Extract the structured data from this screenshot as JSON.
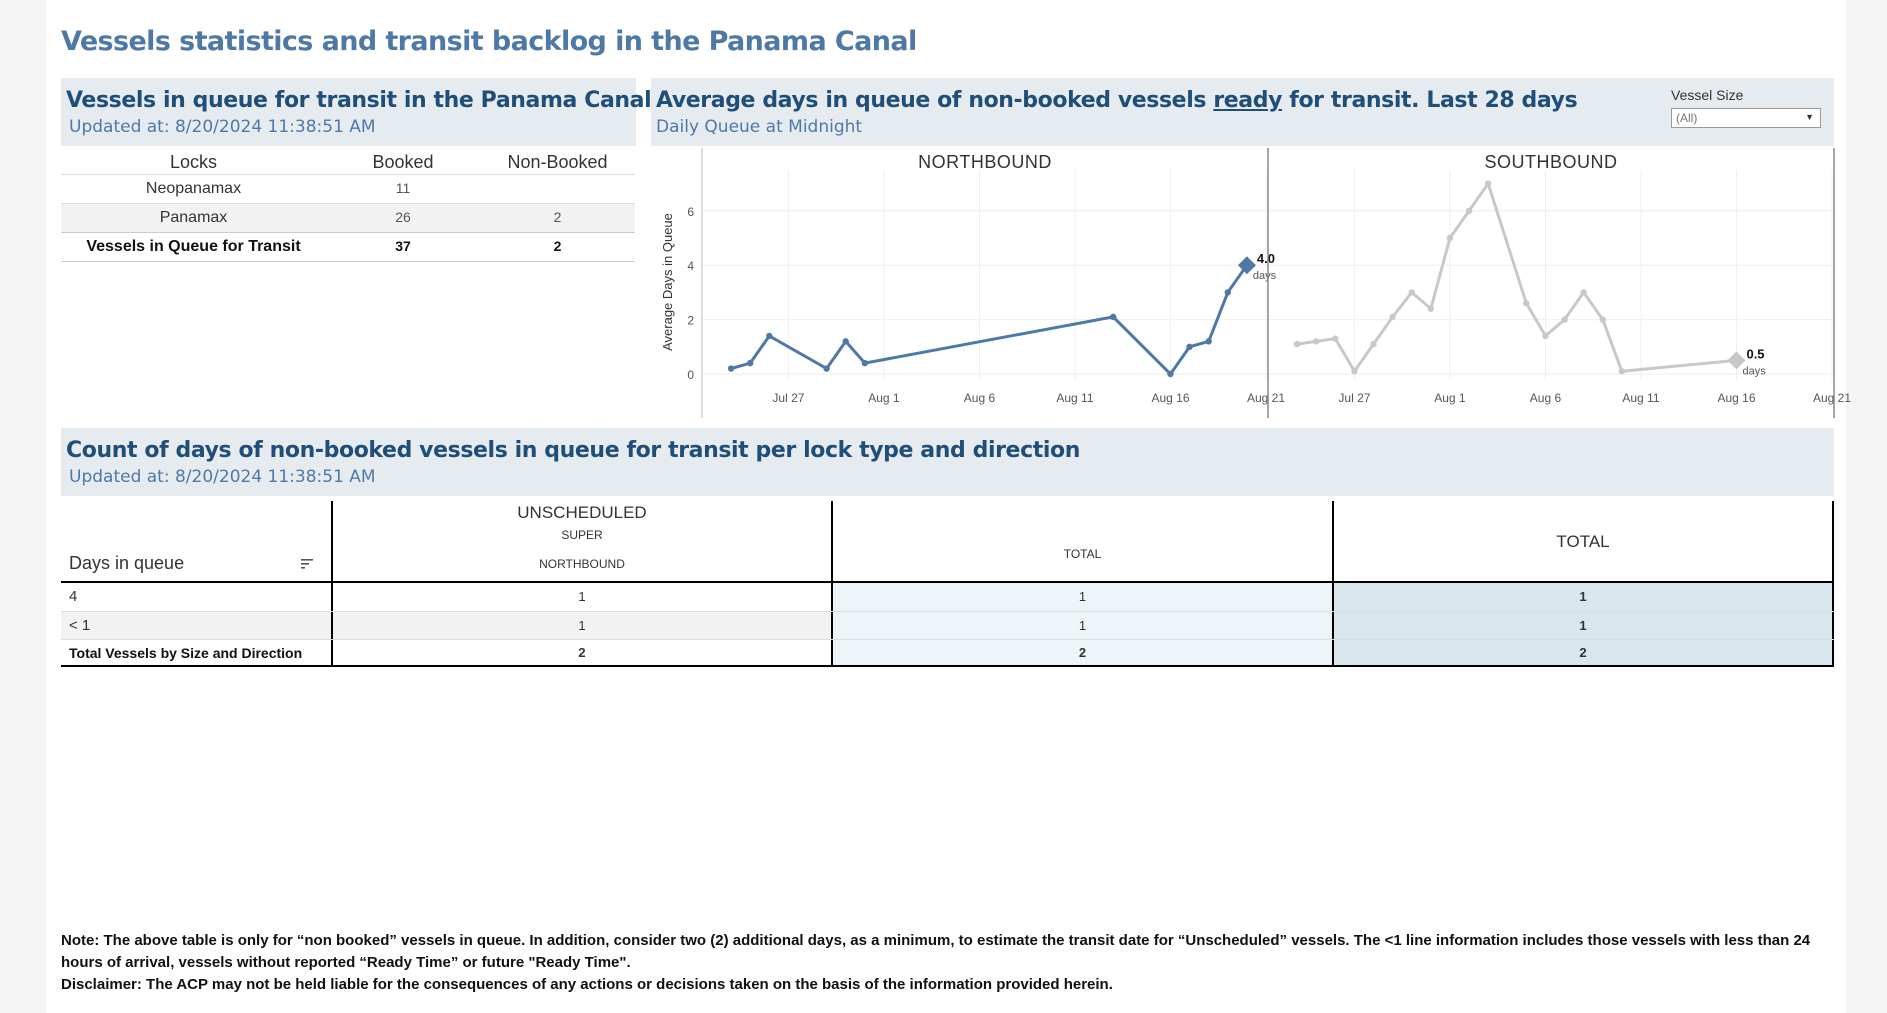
{
  "page": {
    "title": "Vessels statistics and transit backlog in the Panama Canal"
  },
  "queue_panel": {
    "title": "Vessels in queue for transit in the Panama Canal",
    "updated": "Updated at:  8/20/2024 11:38:51 AM",
    "columns": [
      "Locks",
      "Booked",
      "Non-Booked"
    ],
    "rows": [
      {
        "lock": "Neopanamax",
        "booked": "11",
        "non_booked": ""
      },
      {
        "lock": "Panamax",
        "booked": "26",
        "non_booked": "2"
      },
      {
        "lock": "Vessels in Queue for Transit",
        "booked": "37",
        "non_booked": "2"
      }
    ]
  },
  "avg_panel": {
    "title_pre": "Average days in queue of non-booked vessels ",
    "title_ready": "ready",
    "title_post": " for transit. Last 28 days",
    "subtitle": "Daily Queue at Midnight",
    "filter_label": "Vessel Size",
    "filter_value": "(All)"
  },
  "count_panel": {
    "title": "Count of days of non-booked vessels in queue for transit per lock type and direction",
    "updated": "Updated at:  8/20/2024 11:38:51 AM",
    "group_header": "UNSCHEDULED",
    "super_label": "SUPER",
    "northbound_label": "NORTHBOUND",
    "total_sub_label": "TOTAL",
    "total_label": "TOTAL",
    "row_header": "Days in queue",
    "rows": [
      {
        "label": "4",
        "super_nb": "1",
        "unsch_total": "1",
        "total": "1"
      },
      {
        "label": "< 1",
        "super_nb": "1",
        "unsch_total": "1",
        "total": "1"
      },
      {
        "label": "Total Vessels by Size and Direction",
        "super_nb": "2",
        "unsch_total": "2",
        "total": "2"
      }
    ]
  },
  "note": {
    "line1": "Note:  The above table is only for “non booked” vessels in queue. In addition, consider two (2) additional days, as a minimum, to estimate the transit date for “Unscheduled” vessels.  The <1 line information includes those vessels with less than 24 hours of arrival, vessels without reported “Ready Time” or future \"Ready Time\".",
    "line2": "Disclaimer: The ACP may not be held liable for the consequences of any actions or decisions taken on the basis of the information provided herein."
  },
  "colors": {
    "northbound": "#4e79a7",
    "southbound": "#c8c8c8",
    "title": "#1f4e79",
    "header_bg": "#e6ebf0",
    "unsch_total_bg": "#eef5f9",
    "total_bg": "#d8e7ee"
  },
  "chart_data": {
    "type": "line",
    "ylabel": "Average Days in Queue",
    "ylim": [
      0,
      7.5
    ],
    "yticks": [
      0,
      2,
      4,
      6
    ],
    "xtick_labels": [
      "Jul 27",
      "Aug 1",
      "Aug 6",
      "Aug 11",
      "Aug 16",
      "Aug 21"
    ],
    "xtick_dates": [
      "2024-07-27",
      "2024-08-01",
      "2024-08-06",
      "2024-08-11",
      "2024-08-16",
      "2024-08-21"
    ],
    "xlim": [
      "2024-07-23",
      "2024-08-21"
    ],
    "panels": [
      {
        "name": "NORTHBOUND",
        "end_label": "4.0",
        "end_unit": "days",
        "x": [
          "2024-07-24",
          "2024-07-25",
          "2024-07-26",
          "2024-07-29",
          "2024-07-30",
          "2024-07-31",
          "2024-08-13",
          "2024-08-16",
          "2024-08-17",
          "2024-08-18",
          "2024-08-19",
          "2024-08-20"
        ],
        "y": [
          0.2,
          0.4,
          1.4,
          0.2,
          1.2,
          0.4,
          2.1,
          0.0,
          1.0,
          1.2,
          3.0,
          4.0
        ]
      },
      {
        "name": "SOUTHBOUND",
        "end_label": "0.5",
        "end_unit": "days",
        "x": [
          "2024-07-24",
          "2024-07-25",
          "2024-07-26",
          "2024-07-27",
          "2024-07-28",
          "2024-07-29",
          "2024-07-30",
          "2024-07-31",
          "2024-08-01",
          "2024-08-02",
          "2024-08-03",
          "2024-08-05",
          "2024-08-06",
          "2024-08-07",
          "2024-08-08",
          "2024-08-09",
          "2024-08-10",
          "2024-08-16"
        ],
        "y": [
          1.1,
          1.2,
          1.3,
          0.1,
          1.1,
          2.1,
          3.0,
          2.4,
          5.0,
          6.0,
          7.0,
          2.6,
          1.4,
          2.0,
          3.0,
          2.0,
          0.1,
          0.5
        ]
      }
    ]
  }
}
